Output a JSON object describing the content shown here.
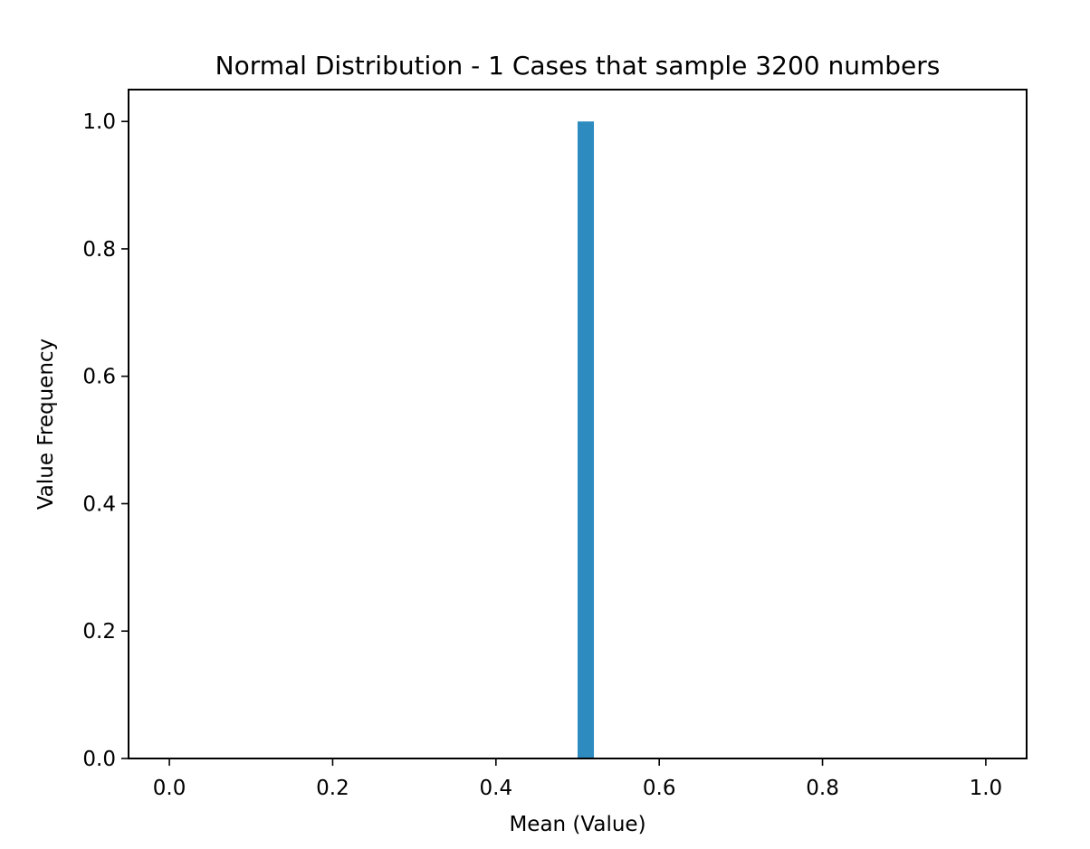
{
  "chart_data": {
    "type": "bar",
    "title": "Normal Distribution - 1 Cases that sample 3200 numbers",
    "xlabel": "Mean (Value)",
    "ylabel": "Value Frequency",
    "xlim": [
      -0.05,
      1.05
    ],
    "ylim": [
      0.0,
      1.05
    ],
    "x_ticks": [
      "0.0",
      "0.2",
      "0.4",
      "0.6",
      "0.8",
      "1.0"
    ],
    "y_ticks": [
      "0.0",
      "0.2",
      "0.4",
      "0.6",
      "0.8",
      "1.0"
    ],
    "bins": [
      {
        "x_start": 0.5,
        "x_end": 0.52,
        "value": 1.0
      }
    ],
    "bar_color": "#2e8bc0",
    "grid": false,
    "legend": false
  }
}
